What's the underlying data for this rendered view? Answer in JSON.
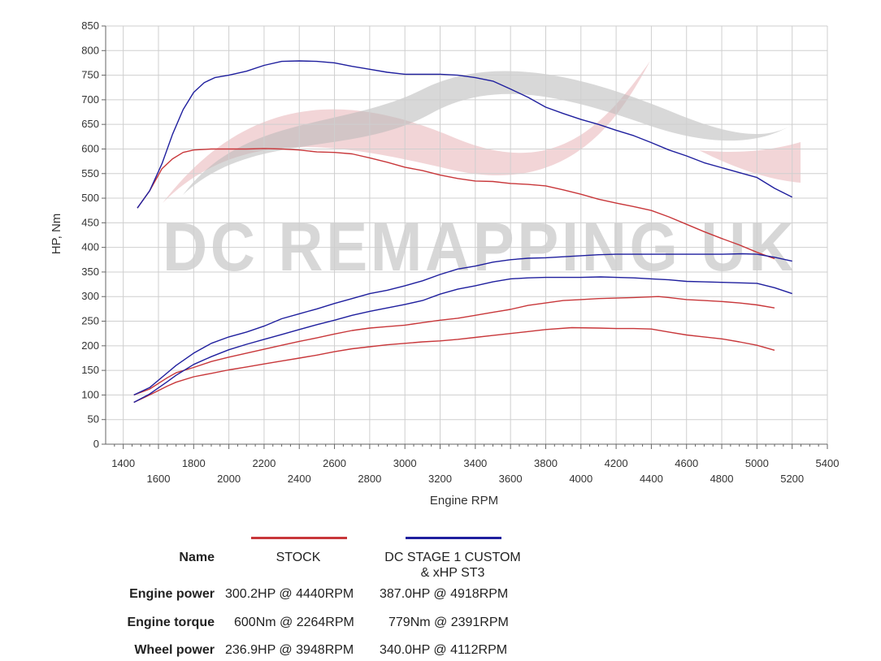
{
  "colors": {
    "stock": "#c8373a",
    "stage1": "#1f1f9e",
    "grid": "#cfcfcf",
    "axis": "#666666",
    "watermark_red": "#e8b3b6",
    "watermark_grey": "#b8b8b8"
  },
  "watermark": {
    "text": "DC REMAPPING UK"
  },
  "chart_data": {
    "type": "line",
    "xlabel": "Engine RPM",
    "ylabel": "HP, Nm",
    "xlim": [
      1300,
      5400
    ],
    "ylim": [
      0,
      850
    ],
    "x_ticks_upper_row": [
      "1400",
      "1800",
      "2200",
      "2600",
      "3000",
      "3400",
      "3800",
      "4200",
      "4600",
      "5000",
      "5400"
    ],
    "x_ticks_lower_row": [
      "1600",
      "2000",
      "2400",
      "2800",
      "3200",
      "3600",
      "4000",
      "4400",
      "4800",
      "5200"
    ],
    "y_ticks": [
      "0",
      "50",
      "100",
      "150",
      "200",
      "250",
      "300",
      "350",
      "400",
      "450",
      "500",
      "550",
      "600",
      "650",
      "700",
      "750",
      "800",
      "850"
    ],
    "grid": true,
    "legend_placement": "bottom",
    "series": [
      {
        "name": "STOCK",
        "measure": "Engine torque",
        "color_key": "stock",
        "points": [
          [
            1480,
            480
          ],
          [
            1550,
            515
          ],
          [
            1620,
            560
          ],
          [
            1680,
            580
          ],
          [
            1740,
            593
          ],
          [
            1800,
            598
          ],
          [
            1900,
            600
          ],
          [
            2000,
            600
          ],
          [
            2100,
            600
          ],
          [
            2200,
            601
          ],
          [
            2300,
            600
          ],
          [
            2400,
            598
          ],
          [
            2500,
            594
          ],
          [
            2600,
            593
          ],
          [
            2700,
            590
          ],
          [
            2800,
            582
          ],
          [
            2900,
            573
          ],
          [
            3000,
            563
          ],
          [
            3100,
            556
          ],
          [
            3200,
            547
          ],
          [
            3300,
            540
          ],
          [
            3400,
            535
          ],
          [
            3500,
            534
          ],
          [
            3600,
            530
          ],
          [
            3700,
            528
          ],
          [
            3800,
            525
          ],
          [
            3900,
            517
          ],
          [
            4000,
            508
          ],
          [
            4100,
            498
          ],
          [
            4200,
            490
          ],
          [
            4300,
            483
          ],
          [
            4400,
            475
          ],
          [
            4500,
            462
          ],
          [
            4600,
            447
          ],
          [
            4700,
            432
          ],
          [
            4800,
            418
          ],
          [
            4900,
            405
          ],
          [
            5000,
            390
          ],
          [
            5100,
            377
          ]
        ]
      },
      {
        "name": "DC STAGE 1 CUSTOM & xHP ST3",
        "measure": "Engine torque",
        "color_key": "stage1",
        "points": [
          [
            1480,
            480
          ],
          [
            1550,
            515
          ],
          [
            1620,
            570
          ],
          [
            1680,
            630
          ],
          [
            1740,
            680
          ],
          [
            1800,
            715
          ],
          [
            1860,
            735
          ],
          [
            1920,
            745
          ],
          [
            2000,
            750
          ],
          [
            2100,
            758
          ],
          [
            2200,
            770
          ],
          [
            2300,
            778
          ],
          [
            2400,
            779
          ],
          [
            2500,
            778
          ],
          [
            2600,
            775
          ],
          [
            2700,
            768
          ],
          [
            2800,
            762
          ],
          [
            2900,
            756
          ],
          [
            3000,
            752
          ],
          [
            3100,
            752
          ],
          [
            3200,
            752
          ],
          [
            3300,
            750
          ],
          [
            3400,
            745
          ],
          [
            3500,
            738
          ],
          [
            3600,
            722
          ],
          [
            3700,
            705
          ],
          [
            3800,
            685
          ],
          [
            3900,
            672
          ],
          [
            4000,
            660
          ],
          [
            4100,
            650
          ],
          [
            4200,
            638
          ],
          [
            4300,
            627
          ],
          [
            4400,
            613
          ],
          [
            4500,
            598
          ],
          [
            4600,
            586
          ],
          [
            4700,
            572
          ],
          [
            4800,
            562
          ],
          [
            4900,
            552
          ],
          [
            5000,
            542
          ],
          [
            5100,
            520
          ],
          [
            5200,
            502
          ]
        ]
      },
      {
        "name": "STOCK",
        "measure": "Engine power",
        "color_key": "stock",
        "points": [
          [
            1460,
            100
          ],
          [
            1550,
            112
          ],
          [
            1650,
            135
          ],
          [
            1700,
            145
          ],
          [
            1800,
            156
          ],
          [
            1900,
            168
          ],
          [
            2000,
            177
          ],
          [
            2100,
            185
          ],
          [
            2200,
            193
          ],
          [
            2300,
            201
          ],
          [
            2400,
            209
          ],
          [
            2500,
            216
          ],
          [
            2600,
            224
          ],
          [
            2700,
            231
          ],
          [
            2800,
            236
          ],
          [
            2900,
            239
          ],
          [
            3000,
            242
          ],
          [
            3100,
            247
          ],
          [
            3200,
            252
          ],
          [
            3300,
            256
          ],
          [
            3400,
            262
          ],
          [
            3500,
            268
          ],
          [
            3600,
            274
          ],
          [
            3700,
            282
          ],
          [
            3800,
            287
          ],
          [
            3900,
            292
          ],
          [
            4000,
            294
          ],
          [
            4100,
            296
          ],
          [
            4200,
            297
          ],
          [
            4300,
            298
          ],
          [
            4440,
            300
          ],
          [
            4500,
            298
          ],
          [
            4600,
            294
          ],
          [
            4700,
            292
          ],
          [
            4800,
            290
          ],
          [
            4900,
            287
          ],
          [
            5000,
            283
          ],
          [
            5100,
            277
          ]
        ]
      },
      {
        "name": "DC STAGE 1 CUSTOM & xHP ST3",
        "measure": "Engine power",
        "color_key": "stage1",
        "points": [
          [
            1460,
            100
          ],
          [
            1550,
            115
          ],
          [
            1650,
            145
          ],
          [
            1700,
            160
          ],
          [
            1800,
            185
          ],
          [
            1900,
            205
          ],
          [
            2000,
            218
          ],
          [
            2100,
            228
          ],
          [
            2200,
            240
          ],
          [
            2300,
            255
          ],
          [
            2400,
            265
          ],
          [
            2500,
            275
          ],
          [
            2600,
            286
          ],
          [
            2700,
            296
          ],
          [
            2800,
            306
          ],
          [
            2900,
            313
          ],
          [
            3000,
            322
          ],
          [
            3100,
            332
          ],
          [
            3200,
            345
          ],
          [
            3300,
            356
          ],
          [
            3400,
            362
          ],
          [
            3500,
            370
          ],
          [
            3600,
            375
          ],
          [
            3700,
            378
          ],
          [
            3800,
            379
          ],
          [
            3900,
            381
          ],
          [
            4000,
            383
          ],
          [
            4100,
            385
          ],
          [
            4200,
            386
          ],
          [
            4300,
            386
          ],
          [
            4400,
            386
          ],
          [
            4500,
            386
          ],
          [
            4600,
            386
          ],
          [
            4700,
            386
          ],
          [
            4800,
            386
          ],
          [
            4918,
            387
          ],
          [
            5000,
            386
          ],
          [
            5100,
            380
          ],
          [
            5200,
            372
          ]
        ]
      },
      {
        "name": "STOCK",
        "measure": "Wheel power",
        "color_key": "stock",
        "points": [
          [
            1460,
            85
          ],
          [
            1550,
            100
          ],
          [
            1650,
            118
          ],
          [
            1700,
            126
          ],
          [
            1800,
            137
          ],
          [
            1900,
            144
          ],
          [
            2000,
            151
          ],
          [
            2100,
            157
          ],
          [
            2200,
            163
          ],
          [
            2300,
            169
          ],
          [
            2400,
            175
          ],
          [
            2500,
            181
          ],
          [
            2600,
            188
          ],
          [
            2700,
            194
          ],
          [
            2800,
            198
          ],
          [
            2900,
            202
          ],
          [
            3000,
            205
          ],
          [
            3100,
            208
          ],
          [
            3200,
            210
          ],
          [
            3300,
            213
          ],
          [
            3400,
            217
          ],
          [
            3500,
            221
          ],
          [
            3600,
            225
          ],
          [
            3700,
            229
          ],
          [
            3800,
            233
          ],
          [
            3948,
            236.9
          ],
          [
            4100,
            236
          ],
          [
            4200,
            235
          ],
          [
            4300,
            235
          ],
          [
            4400,
            234
          ],
          [
            4500,
            228
          ],
          [
            4600,
            222
          ],
          [
            4700,
            218
          ],
          [
            4800,
            214
          ],
          [
            4900,
            208
          ],
          [
            5000,
            201
          ],
          [
            5100,
            191
          ]
        ]
      },
      {
        "name": "DC STAGE 1 CUSTOM & xHP ST3",
        "measure": "Wheel power",
        "color_key": "stage1",
        "points": [
          [
            1460,
            85
          ],
          [
            1550,
            102
          ],
          [
            1650,
            127
          ],
          [
            1700,
            140
          ],
          [
            1800,
            162
          ],
          [
            1900,
            178
          ],
          [
            2000,
            192
          ],
          [
            2100,
            203
          ],
          [
            2200,
            213
          ],
          [
            2300,
            223
          ],
          [
            2400,
            233
          ],
          [
            2500,
            243
          ],
          [
            2600,
            252
          ],
          [
            2700,
            262
          ],
          [
            2800,
            270
          ],
          [
            2900,
            277
          ],
          [
            3000,
            284
          ],
          [
            3100,
            292
          ],
          [
            3200,
            305
          ],
          [
            3300,
            315
          ],
          [
            3400,
            322
          ],
          [
            3500,
            330
          ],
          [
            3600,
            336
          ],
          [
            3700,
            338
          ],
          [
            3800,
            339
          ],
          [
            3900,
            339
          ],
          [
            4000,
            339
          ],
          [
            4112,
            340
          ],
          [
            4200,
            339
          ],
          [
            4300,
            338
          ],
          [
            4400,
            336
          ],
          [
            4500,
            334
          ],
          [
            4600,
            331
          ],
          [
            4700,
            330
          ],
          [
            4800,
            329
          ],
          [
            4900,
            328
          ],
          [
            5000,
            327
          ],
          [
            5100,
            318
          ],
          [
            5200,
            306
          ]
        ]
      }
    ]
  },
  "summary": {
    "name_label": "Name",
    "columns": [
      "STOCK",
      "DC STAGE 1 CUSTOM",
      "& xHP ST3"
    ],
    "rows": [
      {
        "label": "Engine power",
        "stock": "300.2HP @  4440RPM",
        "stage1": "387.0HP @  4918RPM"
      },
      {
        "label": "Engine torque",
        "stock": "600Nm @ 2264RPM",
        "stage1": "779Nm @ 2391RPM"
      },
      {
        "label": "Wheel power",
        "stock": "236.9HP @  3948RPM",
        "stage1": "340.0HP @  4112RPM"
      }
    ]
  }
}
